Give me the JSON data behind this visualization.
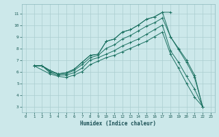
{
  "xlabel": "Humidex (Indice chaleur)",
  "bg_color": "#cce8ea",
  "grid_color": "#aacdd0",
  "line_color": "#1a7060",
  "xlim": [
    -0.5,
    23.5
  ],
  "ylim": [
    2.5,
    11.8
  ],
  "xticks": [
    0,
    1,
    2,
    3,
    4,
    5,
    6,
    7,
    8,
    9,
    10,
    11,
    12,
    13,
    14,
    15,
    16,
    17,
    18,
    19,
    20,
    21,
    22,
    23
  ],
  "yticks": [
    3,
    4,
    5,
    6,
    7,
    8,
    9,
    10,
    11
  ],
  "line1_x": [
    1,
    2,
    3,
    4,
    5,
    6,
    7,
    8,
    9,
    10,
    11,
    12,
    13,
    14,
    15,
    16,
    17,
    18
  ],
  "line1_y": [
    6.5,
    6.5,
    6.1,
    5.8,
    5.9,
    6.2,
    6.8,
    7.4,
    7.5,
    8.6,
    8.8,
    9.4,
    9.6,
    10.0,
    10.5,
    10.7,
    11.1,
    11.1
  ],
  "line2_x": [
    1,
    2,
    3,
    4,
    5,
    6,
    7,
    8,
    9,
    10,
    11,
    12,
    13,
    14,
    15,
    16,
    17,
    18,
    19,
    20,
    21,
    22
  ],
  "line2_y": [
    6.5,
    6.5,
    6.1,
    5.8,
    5.9,
    6.2,
    6.8,
    7.4,
    7.5,
    8.6,
    8.8,
    9.4,
    9.6,
    10.0,
    10.5,
    10.7,
    11.1,
    9.0,
    8.0,
    7.0,
    5.7,
    3.0
  ],
  "line3_x": [
    1,
    2,
    3,
    4,
    5,
    6,
    7,
    8,
    9,
    10,
    11,
    12,
    13,
    14,
    15,
    16,
    17,
    18,
    19,
    20,
    21,
    22
  ],
  "line3_y": [
    6.5,
    6.5,
    6.0,
    5.8,
    5.8,
    6.1,
    6.6,
    7.2,
    7.4,
    8.0,
    8.3,
    8.8,
    9.1,
    9.5,
    9.9,
    10.2,
    10.6,
    9.0,
    7.9,
    6.8,
    5.5,
    3.0
  ],
  "line4_x": [
    1,
    2,
    3,
    4,
    5,
    6,
    7,
    8,
    9,
    10,
    11,
    12,
    13,
    14,
    15,
    16,
    17,
    18,
    19,
    20,
    21,
    22
  ],
  "line4_y": [
    6.5,
    6.5,
    5.9,
    5.7,
    5.7,
    5.9,
    6.3,
    7.0,
    7.2,
    7.5,
    7.8,
    8.2,
    8.5,
    8.8,
    9.2,
    9.6,
    10.0,
    7.8,
    6.8,
    5.6,
    4.5,
    3.0
  ],
  "line5_x": [
    1,
    3,
    4,
    5,
    6,
    7,
    8,
    9,
    10,
    11,
    12,
    13,
    14,
    15,
    16,
    17,
    18,
    19,
    20,
    21,
    22
  ],
  "line5_y": [
    6.5,
    5.8,
    5.6,
    5.5,
    5.7,
    6.0,
    6.6,
    6.9,
    7.2,
    7.4,
    7.7,
    8.0,
    8.3,
    8.6,
    9.0,
    9.4,
    7.5,
    6.3,
    5.0,
    3.8,
    3.0
  ]
}
